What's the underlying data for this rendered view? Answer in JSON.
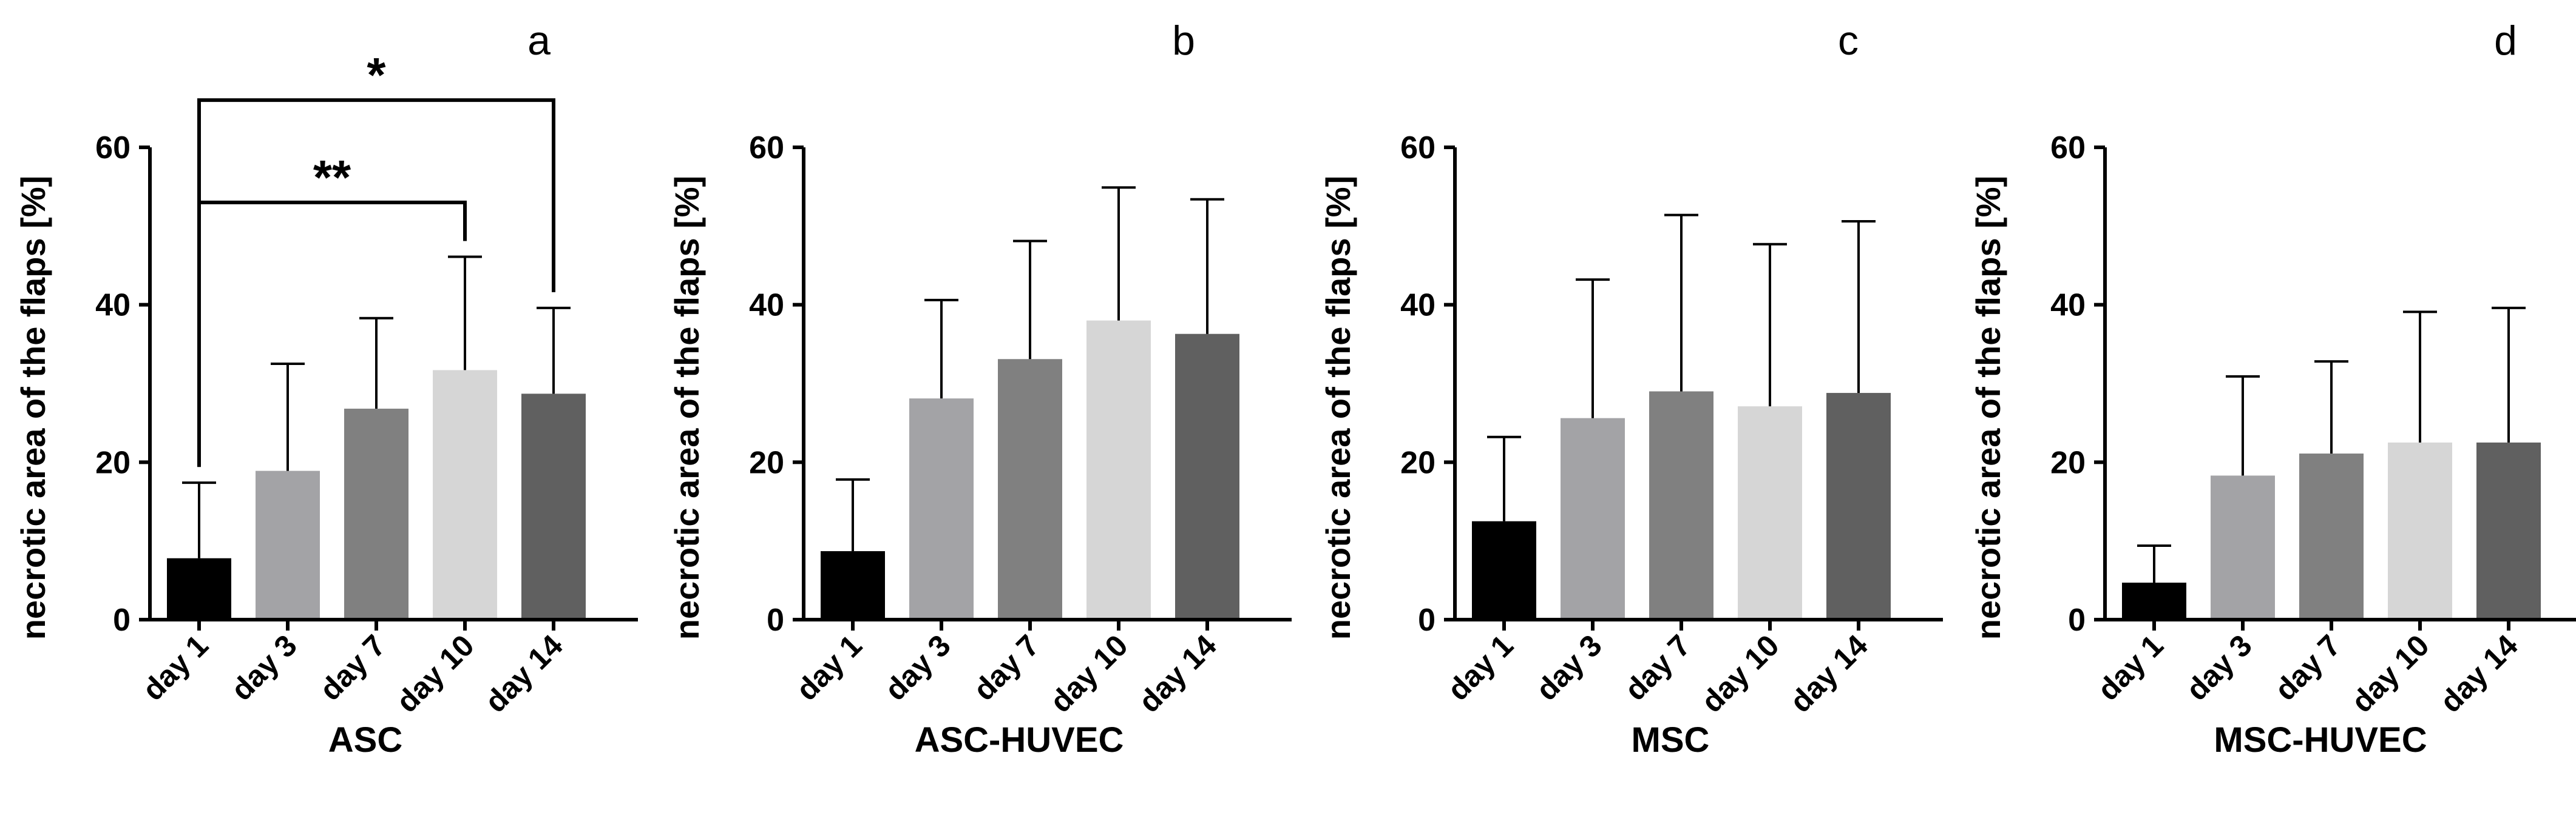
{
  "figure": {
    "description_text": ""
  },
  "chart_data": [
    {
      "panel": "a",
      "type": "bar",
      "title": "ASC",
      "xlabel": "ASC",
      "ylabel": "necrotic area of the flaps [%]",
      "categories": [
        "day 1",
        "day 3",
        "day 7",
        "day 10",
        "day 14"
      ],
      "values": [
        7.8,
        18.9,
        26.8,
        31.7,
        28.7
      ],
      "errors": [
        9.6,
        13.6,
        11.5,
        14.4,
        10.9
      ],
      "colors": [
        "#000000",
        "#a3a3a6",
        "#808080",
        "#d6d6d6",
        "#606060"
      ],
      "ylim": [
        0,
        60
      ],
      "yticks": [
        0,
        20,
        40,
        60
      ],
      "significance": [
        {
          "from": 0,
          "to": 3,
          "label": "**",
          "y": 53
        },
        {
          "from": 0,
          "to": 4,
          "label": "*",
          "y": 66
        }
      ]
    },
    {
      "panel": "b",
      "type": "bar",
      "title": "ASC-HUVEC",
      "xlabel": "ASC-HUVEC",
      "ylabel": "necrotic area of the flaps [%]",
      "categories": [
        "day 1",
        "day 3",
        "day 7",
        "day 10",
        "day 14"
      ],
      "values": [
        8.7,
        28.1,
        33.1,
        38.0,
        36.3
      ],
      "errors": [
        9.1,
        12.5,
        15.0,
        16.9,
        17.1
      ],
      "colors": [
        "#000000",
        "#a3a3a6",
        "#808080",
        "#d6d6d6",
        "#606060"
      ],
      "ylim": [
        0,
        60
      ],
      "yticks": [
        0,
        20,
        40,
        60
      ],
      "significance": []
    },
    {
      "panel": "c",
      "type": "bar",
      "title": "MSC",
      "xlabel": "MSC",
      "ylabel": "necrotic area of the flaps [%]",
      "categories": [
        "day 1",
        "day 3",
        "day 7",
        "day 10",
        "day 14"
      ],
      "values": [
        12.5,
        25.6,
        29.0,
        27.1,
        28.8
      ],
      "errors": [
        10.7,
        17.6,
        22.4,
        20.6,
        21.8
      ],
      "colors": [
        "#000000",
        "#a3a3a6",
        "#808080",
        "#d6d6d6",
        "#606060"
      ],
      "ylim": [
        0,
        60
      ],
      "yticks": [
        0,
        20,
        40,
        60
      ],
      "significance": []
    },
    {
      "panel": "d",
      "type": "bar",
      "title": "MSC-HUVEC",
      "xlabel": "MSC-HUVEC",
      "ylabel": "necrotic area of the flaps [%]",
      "categories": [
        "day 1",
        "day 3",
        "day 7",
        "day 10",
        "day 14"
      ],
      "values": [
        4.7,
        18.3,
        21.1,
        22.5,
        22.5
      ],
      "errors": [
        4.7,
        12.6,
        11.7,
        16.6,
        17.1
      ],
      "colors": [
        "#000000",
        "#a3a3a6",
        "#808080",
        "#d6d6d6",
        "#606060"
      ],
      "ylim": [
        0,
        60
      ],
      "yticks": [
        0,
        20,
        40,
        60
      ],
      "significance": []
    }
  ]
}
